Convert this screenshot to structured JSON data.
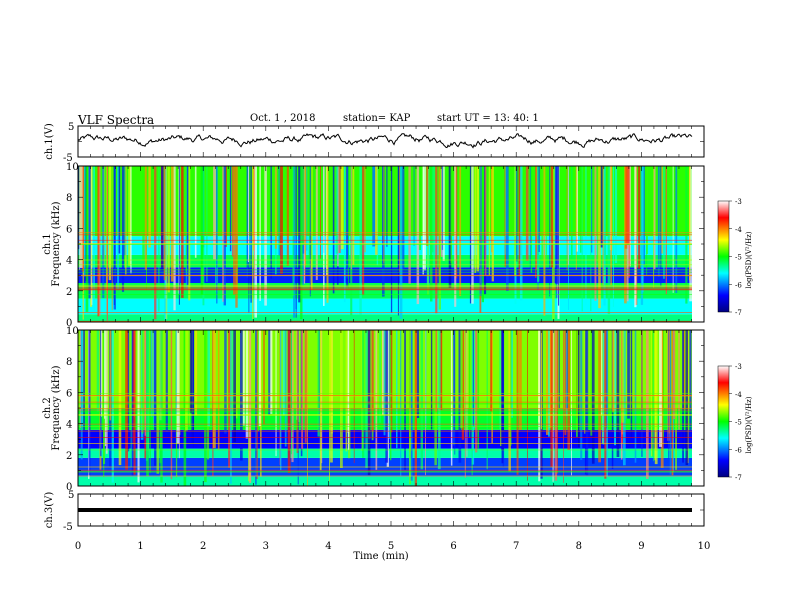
{
  "header": {
    "title": "VLF Spectra",
    "date": "Oct. 1 , 2018",
    "station": "station= KAP",
    "start": "start UT = 13: 40: 1"
  },
  "chart_data": [
    {
      "type": "line",
      "ylabel": "ch.1(V)",
      "ylim": [
        -5,
        5
      ],
      "ytick_labels": [
        "5",
        "-5"
      ],
      "xlim": [
        0,
        10
      ],
      "note": "noisy waveform, amplitude mostly between -1 and 2 V"
    },
    {
      "type": "heatmap",
      "ylabel": "ch.1\nFrequency (kHz)",
      "ylim": [
        0,
        10
      ],
      "yticks": [
        0,
        2,
        4,
        6,
        8,
        10
      ],
      "xlim": [
        0,
        10
      ],
      "colorbar": {
        "label": "log(PSD)(V²/Hz)",
        "range": [
          -7,
          -3
        ],
        "ticks": [
          -7,
          -6,
          -5,
          -4,
          -3
        ]
      },
      "band_structure": [
        {
          "from": 0.0,
          "to": 0.5,
          "level": -5.3
        },
        {
          "from": 0.5,
          "to": 1.5,
          "level": -5.6
        },
        {
          "from": 1.5,
          "to": 2.5,
          "level": -5.2
        },
        {
          "from": 2.5,
          "to": 3.5,
          "level": -6.3
        },
        {
          "from": 3.5,
          "to": 4.3,
          "level": -5.2
        },
        {
          "from": 4.3,
          "to": 5.5,
          "level": -5.6
        },
        {
          "from": 5.5,
          "to": 10.0,
          "level": -4.9
        }
      ]
    },
    {
      "type": "heatmap",
      "ylabel": "ch.2\nFrequency (kHz)",
      "ylim": [
        0,
        10
      ],
      "yticks": [
        0,
        2,
        4,
        6,
        8,
        10
      ],
      "xlim": [
        0,
        10
      ],
      "colorbar": {
        "label": "log(PSD)(V²/Hz)",
        "range": [
          -7,
          -3
        ],
        "ticks": [
          -7,
          -6,
          -5,
          -4,
          -3
        ]
      },
      "band_structure": [
        {
          "from": 0.0,
          "to": 0.6,
          "level": -5.4
        },
        {
          "from": 0.6,
          "to": 1.8,
          "level": -6.2
        },
        {
          "from": 1.8,
          "to": 2.4,
          "level": -5.4
        },
        {
          "from": 2.4,
          "to": 3.6,
          "level": -6.4
        },
        {
          "from": 3.6,
          "to": 5.0,
          "level": -5.1
        },
        {
          "from": 5.0,
          "to": 10.0,
          "level": -4.7
        }
      ]
    },
    {
      "type": "line",
      "ylabel": "ch.3(V)",
      "ylim": [
        -5,
        5
      ],
      "ytick_labels": [
        "5",
        "-5"
      ],
      "xlim": [
        0,
        10
      ],
      "xlabel": "Time (min)",
      "xticks": [
        0,
        1,
        2,
        3,
        4,
        5,
        6,
        7,
        8,
        9,
        10
      ],
      "constant_value": 0
    }
  ],
  "colors": {
    "axis": "#000000",
    "trace": "#000000",
    "background": "#ffffff"
  }
}
